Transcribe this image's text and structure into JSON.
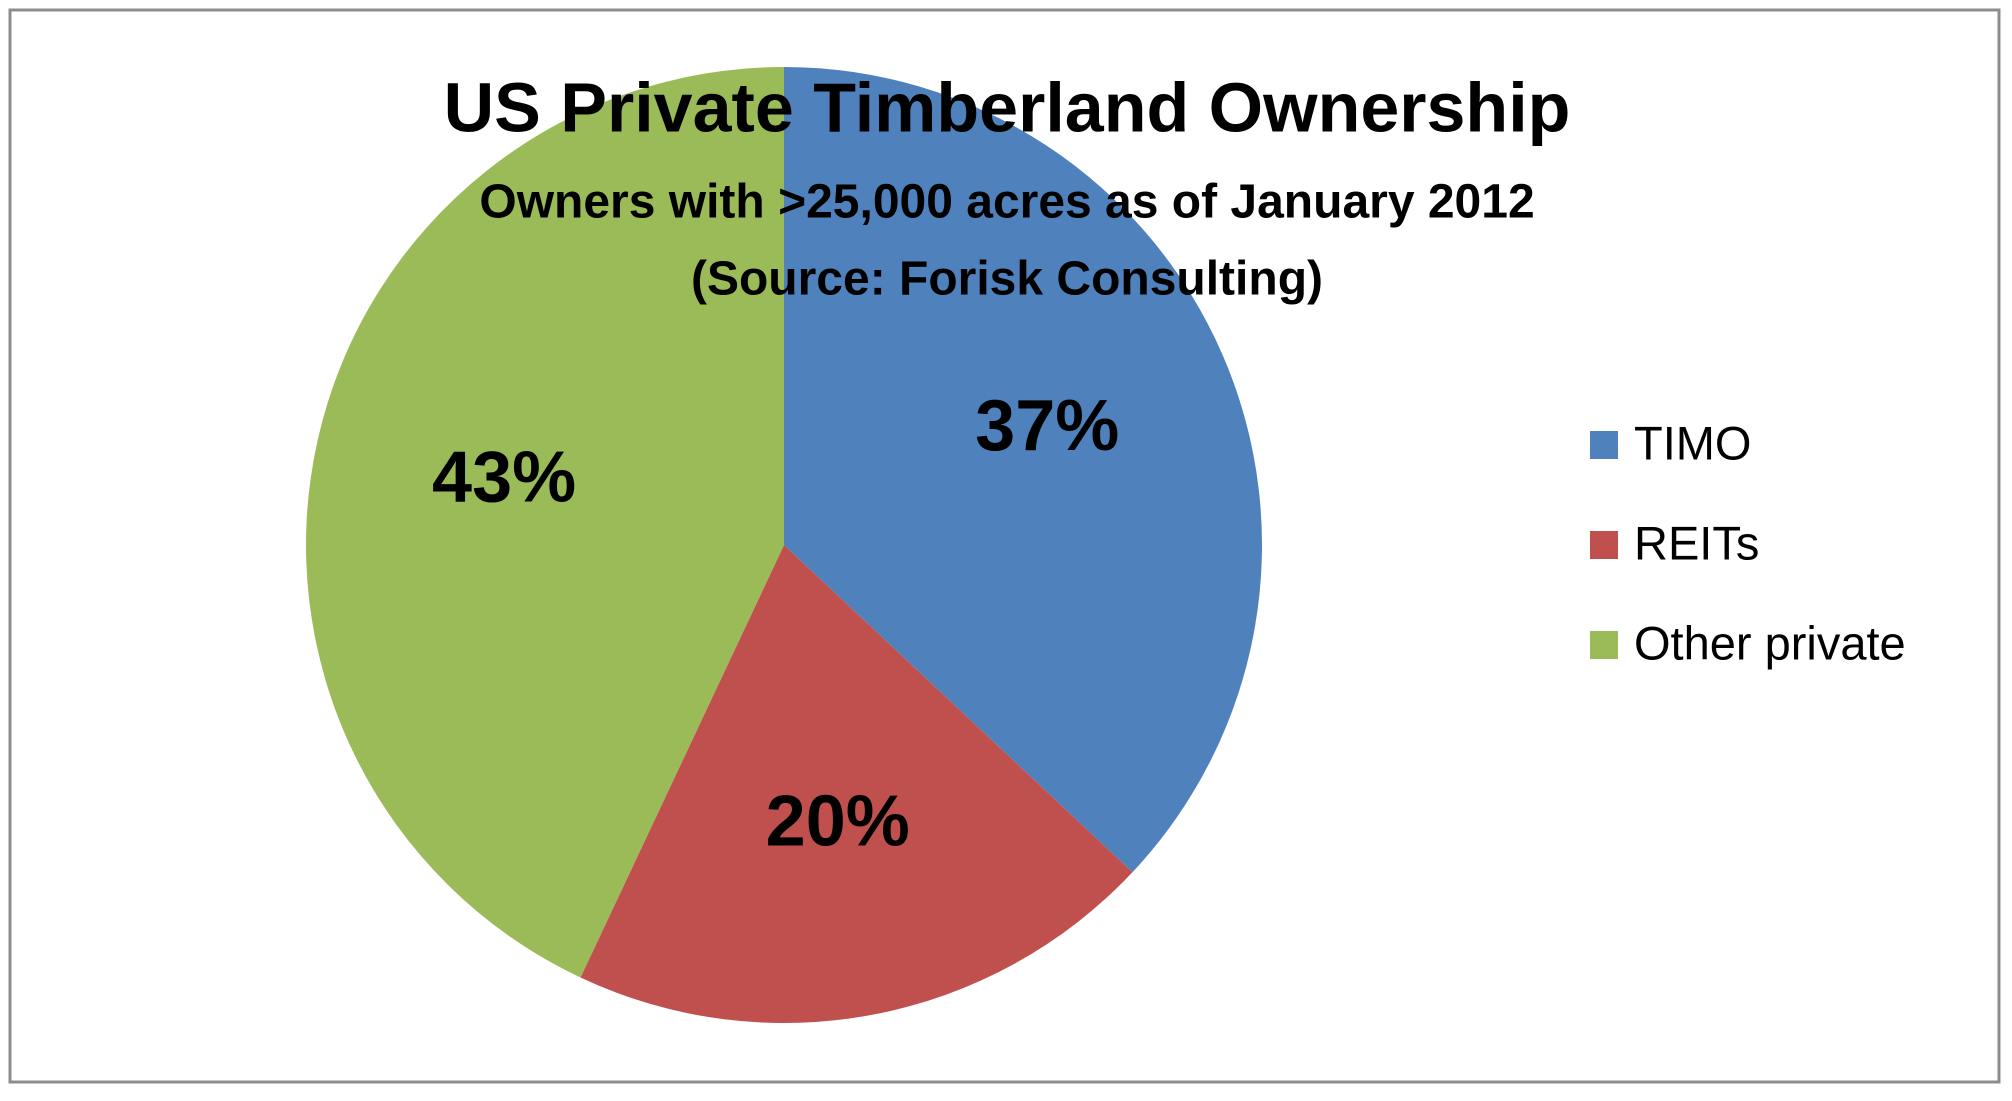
{
  "chart_data": {
    "type": "pie",
    "title": "US Private Timberland Ownership",
    "subtitle": [
      "Owners with >25,000 acres as of January 2012",
      "(Source: Forisk Consulting)"
    ],
    "categories": [
      "TIMO",
      "REITs",
      "Other private"
    ],
    "values": [
      37,
      20,
      43
    ],
    "value_labels": [
      "37%",
      "20%",
      "43%"
    ],
    "colors": [
      "#4f81bd",
      "#c0504d",
      "#9bbb59"
    ],
    "legend": "right"
  }
}
